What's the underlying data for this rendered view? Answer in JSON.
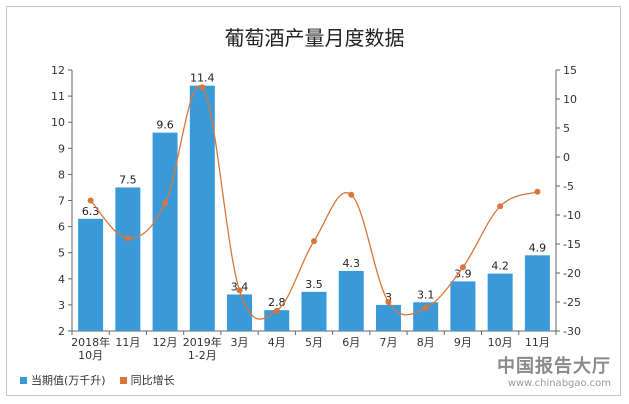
{
  "chart_data": {
    "type": "bar",
    "title": "葡萄酒产量月度数据",
    "categories": [
      "2018年\n10月",
      "11月",
      "12月",
      "2019年\n1-2月",
      "3月",
      "4月",
      "5月",
      "6月",
      "7月",
      "8月",
      "9月",
      "10月",
      "11月"
    ],
    "series": [
      {
        "name": "当期值(万千升)",
        "type": "bar",
        "axis": "left",
        "color": "#3a9ad9",
        "values": [
          6.3,
          7.5,
          9.6,
          11.4,
          3.4,
          2.8,
          3.5,
          4.3,
          3,
          3.1,
          3.9,
          4.2,
          4.9
        ]
      },
      {
        "name": "同比增长",
        "type": "line",
        "axis": "right",
        "color": "#d9773a",
        "values": [
          -7.5,
          -14,
          -8,
          12,
          -23,
          -26.5,
          -14.5,
          -6.5,
          -25,
          -26,
          -19,
          -8.5,
          -6
        ]
      }
    ],
    "yleft": {
      "min": 2,
      "max": 12,
      "ticks": [
        "2",
        "3",
        "4",
        "5",
        "6",
        "7",
        "8",
        "9",
        "10",
        "11",
        "12"
      ]
    },
    "yright": {
      "min": -30,
      "max": 15,
      "ticks": [
        "-30",
        "-25",
        "-20",
        "-15",
        "-10",
        "-5",
        "0",
        "5",
        "10",
        "15"
      ]
    },
    "legend_position": "bottom-left",
    "grid": false
  },
  "watermark": {
    "logo": "中国报告大厅",
    "url": "www.chinabgao.com"
  }
}
